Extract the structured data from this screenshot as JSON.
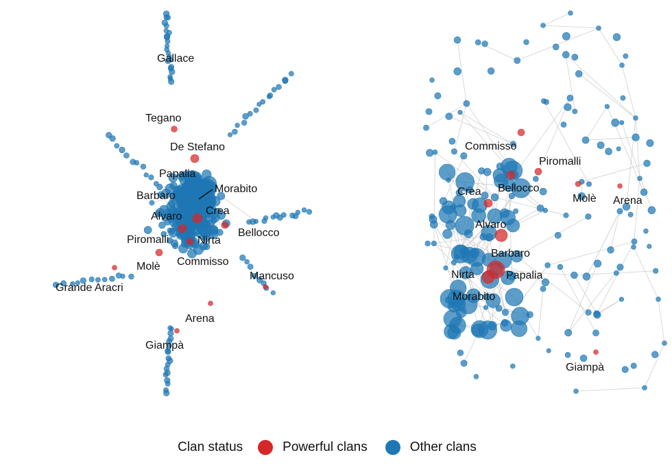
{
  "colors": {
    "powerful": "#d62728",
    "other": "#1f77b4",
    "edge": "#cfcfcf"
  },
  "legend": {
    "title": "Clan status",
    "powerful_label": "Powerful clans",
    "other_label": "Other clans"
  },
  "left_network": {
    "labels": [
      "Gallace",
      "Tegano",
      "De Stefano",
      "Papalia",
      "Morabito",
      "Barbaro",
      "Crea",
      "Alvaro",
      "Bellocco",
      "Piromalli",
      "Nirta",
      "Molè",
      "Commisso",
      "Mancuso",
      "Grande Aracri",
      "Arena",
      "Giampà"
    ]
  },
  "right_network": {
    "labels": [
      "Commisso",
      "Piromalli",
      "Crea",
      "Bellocco",
      "Molè",
      "Arena",
      "Alvaro",
      "Barbaro",
      "Nirta",
      "Papalia",
      "Morabito",
      "Giampà"
    ]
  }
}
